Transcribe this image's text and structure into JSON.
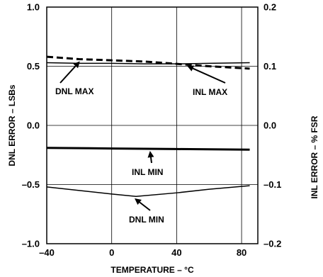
{
  "chart_data": {
    "type": "line",
    "xlabel": "TEMPERATURE – °C",
    "ylabel": "DNL ERROR – LSBs",
    "y2label": "INL ERROR – % FSR",
    "xlim": [
      -40,
      90
    ],
    "ylim": [
      -1.0,
      1.0
    ],
    "y2lim": [
      -0.2,
      0.2
    ],
    "x_ticks": [
      -40,
      0,
      40,
      80
    ],
    "x_tick_labels": [
      "–40",
      "0",
      "40",
      "80"
    ],
    "x_gridlines": [
      0,
      40,
      80
    ],
    "y_ticks": [
      1.0,
      0.5,
      0.0,
      -0.5,
      -1.0
    ],
    "y_tick_labels": [
      "1.0",
      "0.5",
      "0.0",
      "–0.5",
      "–1.0"
    ],
    "y2_ticks": [
      0.2,
      0.1,
      0.0,
      -0.1,
      -0.2
    ],
    "y2_tick_labels": [
      "0.2",
      "0.1",
      "0.0",
      "–0.1",
      "–0.2"
    ],
    "y_gridlines": [
      0.5,
      0.0,
      -0.5
    ],
    "grid": true,
    "series": [
      {
        "name": "DNL MAX",
        "axis": "left",
        "style": "dashed",
        "x": [
          -40,
          -20,
          0,
          20,
          40,
          60,
          85
        ],
        "y": [
          0.58,
          0.56,
          0.55,
          0.54,
          0.52,
          0.5,
          0.48
        ]
      },
      {
        "name": "INL MAX",
        "axis": "right",
        "style": "thin",
        "x": [
          -40,
          -20,
          0,
          20,
          40,
          60,
          85
        ],
        "y": [
          0.106,
          0.105,
          0.105,
          0.104,
          0.104,
          0.105,
          0.106
        ]
      },
      {
        "name": "INL MIN",
        "axis": "right",
        "style": "thick",
        "x": [
          -40,
          0,
          40,
          85
        ],
        "y": [
          -0.038,
          -0.039,
          -0.04,
          -0.041
        ]
      },
      {
        "name": "DNL MIN",
        "axis": "left",
        "style": "thin",
        "x": [
          -40,
          -20,
          0,
          15,
          40,
          60,
          85
        ],
        "y": [
          -0.52,
          -0.55,
          -0.58,
          -0.6,
          -0.57,
          -0.54,
          -0.51
        ]
      }
    ],
    "annotations": [
      {
        "text": "DNL MAX",
        "series": "DNL MAX"
      },
      {
        "text": "INL MAX",
        "series": "INL MAX"
      },
      {
        "text": "INL MIN",
        "series": "INL MIN"
      },
      {
        "text": "DNL MIN",
        "series": "DNL MIN"
      }
    ]
  }
}
